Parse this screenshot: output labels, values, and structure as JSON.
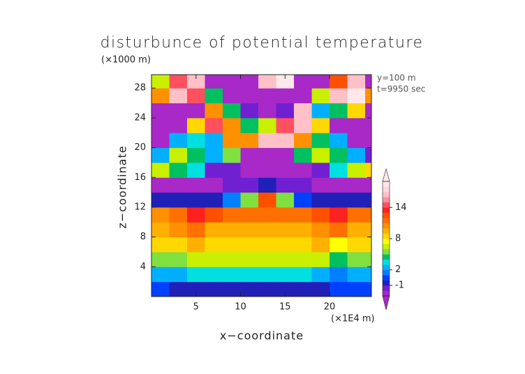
{
  "chart_data": {
    "type": "contourf",
    "title": "disturbunce of potential temperature",
    "y_unit_label": "(×1000 m)",
    "x_unit_label": "(×1E4 m)",
    "annotations": [
      "y=100 m",
      "t=9950 sec"
    ],
    "xlabel": "x−coordinate",
    "ylabel": "z−coordinate",
    "xlim": [
      0,
      24.7
    ],
    "ylim": [
      0,
      29.8
    ],
    "xticks": [
      5,
      10,
      15,
      20
    ],
    "yticks": [
      4,
      8,
      12,
      16,
      20,
      24,
      28
    ],
    "x": [
      1,
      3,
      5,
      7,
      9,
      11,
      13,
      15,
      17,
      19,
      21,
      23,
      25
    ],
    "y": [
      1,
      3,
      5,
      7,
      9,
      11,
      13,
      15,
      17,
      19,
      21,
      23,
      25,
      27,
      29
    ],
    "values": [
      [
        0,
        -1,
        -1,
        -1,
        -1,
        -1,
        -1,
        -1,
        -1,
        -1,
        0,
        0,
        0
      ],
      [
        2,
        2,
        3,
        3,
        3,
        3,
        3,
        3,
        3,
        2,
        1,
        2,
        2
      ],
      [
        5,
        5,
        6,
        6,
        6,
        6,
        6,
        6,
        6,
        6,
        4,
        5,
        5
      ],
      [
        8,
        8,
        9,
        8,
        8,
        8,
        8,
        8,
        8,
        9,
        7,
        8,
        8
      ],
      [
        9,
        10,
        11,
        9,
        9,
        9,
        9,
        9,
        9,
        10,
        11,
        9,
        9
      ],
      [
        10,
        11,
        13,
        12,
        11,
        11,
        11,
        11,
        11,
        12,
        13,
        11,
        11
      ],
      [
        -1,
        -1,
        -1,
        -1,
        1,
        5,
        12,
        5,
        0,
        -1,
        -1,
        -1,
        -1
      ],
      [
        -3,
        -3,
        -3,
        -3,
        -2,
        -2,
        -1,
        -2,
        -2,
        -3,
        -3,
        -3,
        -3
      ],
      [
        6,
        4,
        3,
        -2,
        -2,
        -3,
        -3,
        -3,
        -3,
        -2,
        3,
        6,
        8
      ],
      [
        2,
        6,
        4,
        2,
        5,
        -3,
        -3,
        -3,
        4,
        6,
        4,
        2,
        -2
      ],
      [
        -3,
        2,
        3,
        2,
        10,
        10,
        16,
        16,
        10,
        4,
        2,
        -3,
        -3
      ],
      [
        -3,
        -3,
        8,
        14,
        10,
        4,
        6,
        14,
        16,
        8,
        -3,
        -3,
        -3
      ],
      [
        -3,
        -3,
        -3,
        10,
        4,
        -2,
        -3,
        -2,
        16,
        2,
        4,
        8,
        -3
      ],
      [
        10,
        16,
        14,
        4,
        -3,
        -3,
        -3,
        -3,
        -3,
        6,
        16,
        18,
        10
      ],
      [
        6,
        14,
        16,
        -3,
        -3,
        -3,
        16,
        18,
        -3,
        -3,
        12,
        16,
        -3
      ]
    ],
    "colorbar": {
      "levels": [
        -3,
        -2,
        -1,
        0,
        1,
        2,
        3,
        4,
        5,
        6,
        7,
        8,
        9,
        10,
        11,
        12,
        13,
        14,
        15,
        16,
        17,
        18,
        19
      ],
      "colors": [
        "#a828c8",
        "#7020d0",
        "#2020b8",
        "#0040ff",
        "#0080ff",
        "#00b0ff",
        "#00e0e0",
        "#00c060",
        "#80e040",
        "#c8f000",
        "#ffff00",
        "#ffd800",
        "#ffb000",
        "#ff9000",
        "#ff7000",
        "#ff5000",
        "#ff2020",
        "#ff5060",
        "#ff90a0",
        "#ffc0c8",
        "#ffd8dc",
        "#ffe8ea"
      ],
      "ticks": [
        -1,
        2,
        8,
        14
      ]
    }
  }
}
